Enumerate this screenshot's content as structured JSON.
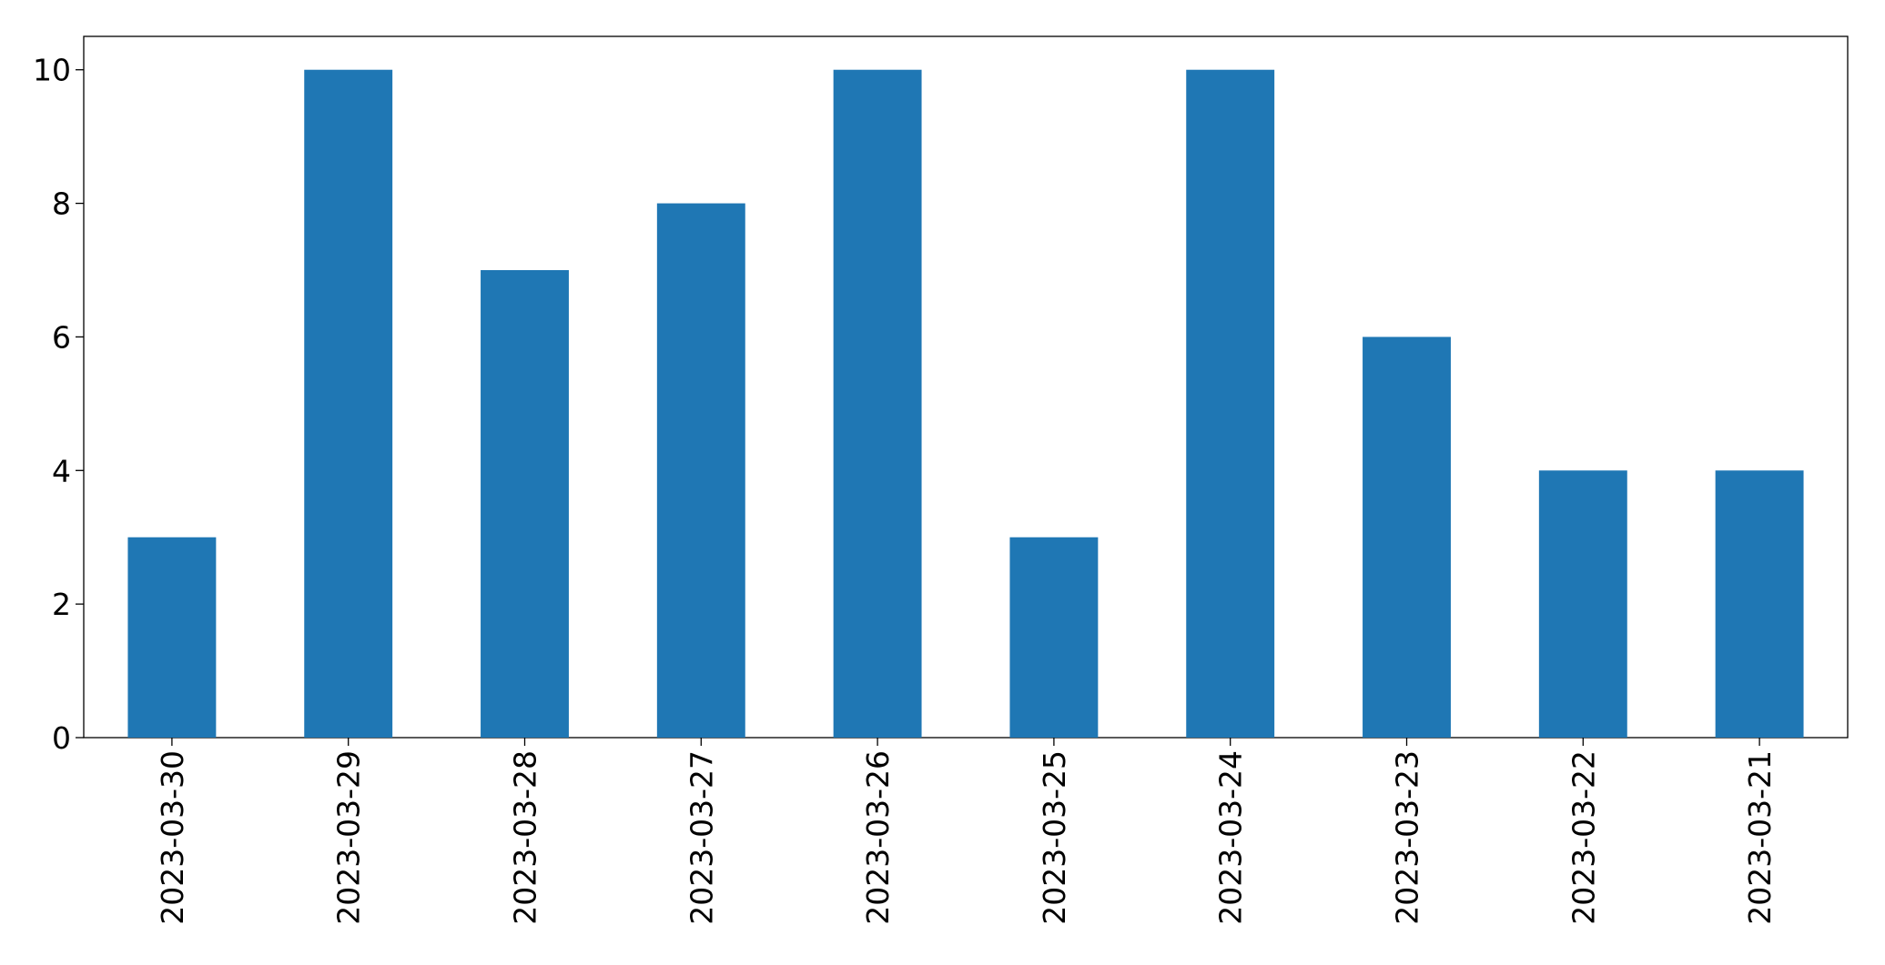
{
  "chart_data": {
    "type": "bar",
    "categories": [
      "2023-03-30",
      "2023-03-29",
      "2023-03-28",
      "2023-03-27",
      "2023-03-26",
      "2023-03-25",
      "2023-03-24",
      "2023-03-23",
      "2023-03-22",
      "2023-03-21"
    ],
    "values": [
      3,
      10,
      7,
      8,
      10,
      3,
      10,
      6,
      4,
      4
    ],
    "color": "#1f77b4",
    "ylim": [
      0,
      10.5
    ],
    "yticks": [
      0,
      2,
      4,
      6,
      8,
      10
    ],
    "grid": false
  }
}
